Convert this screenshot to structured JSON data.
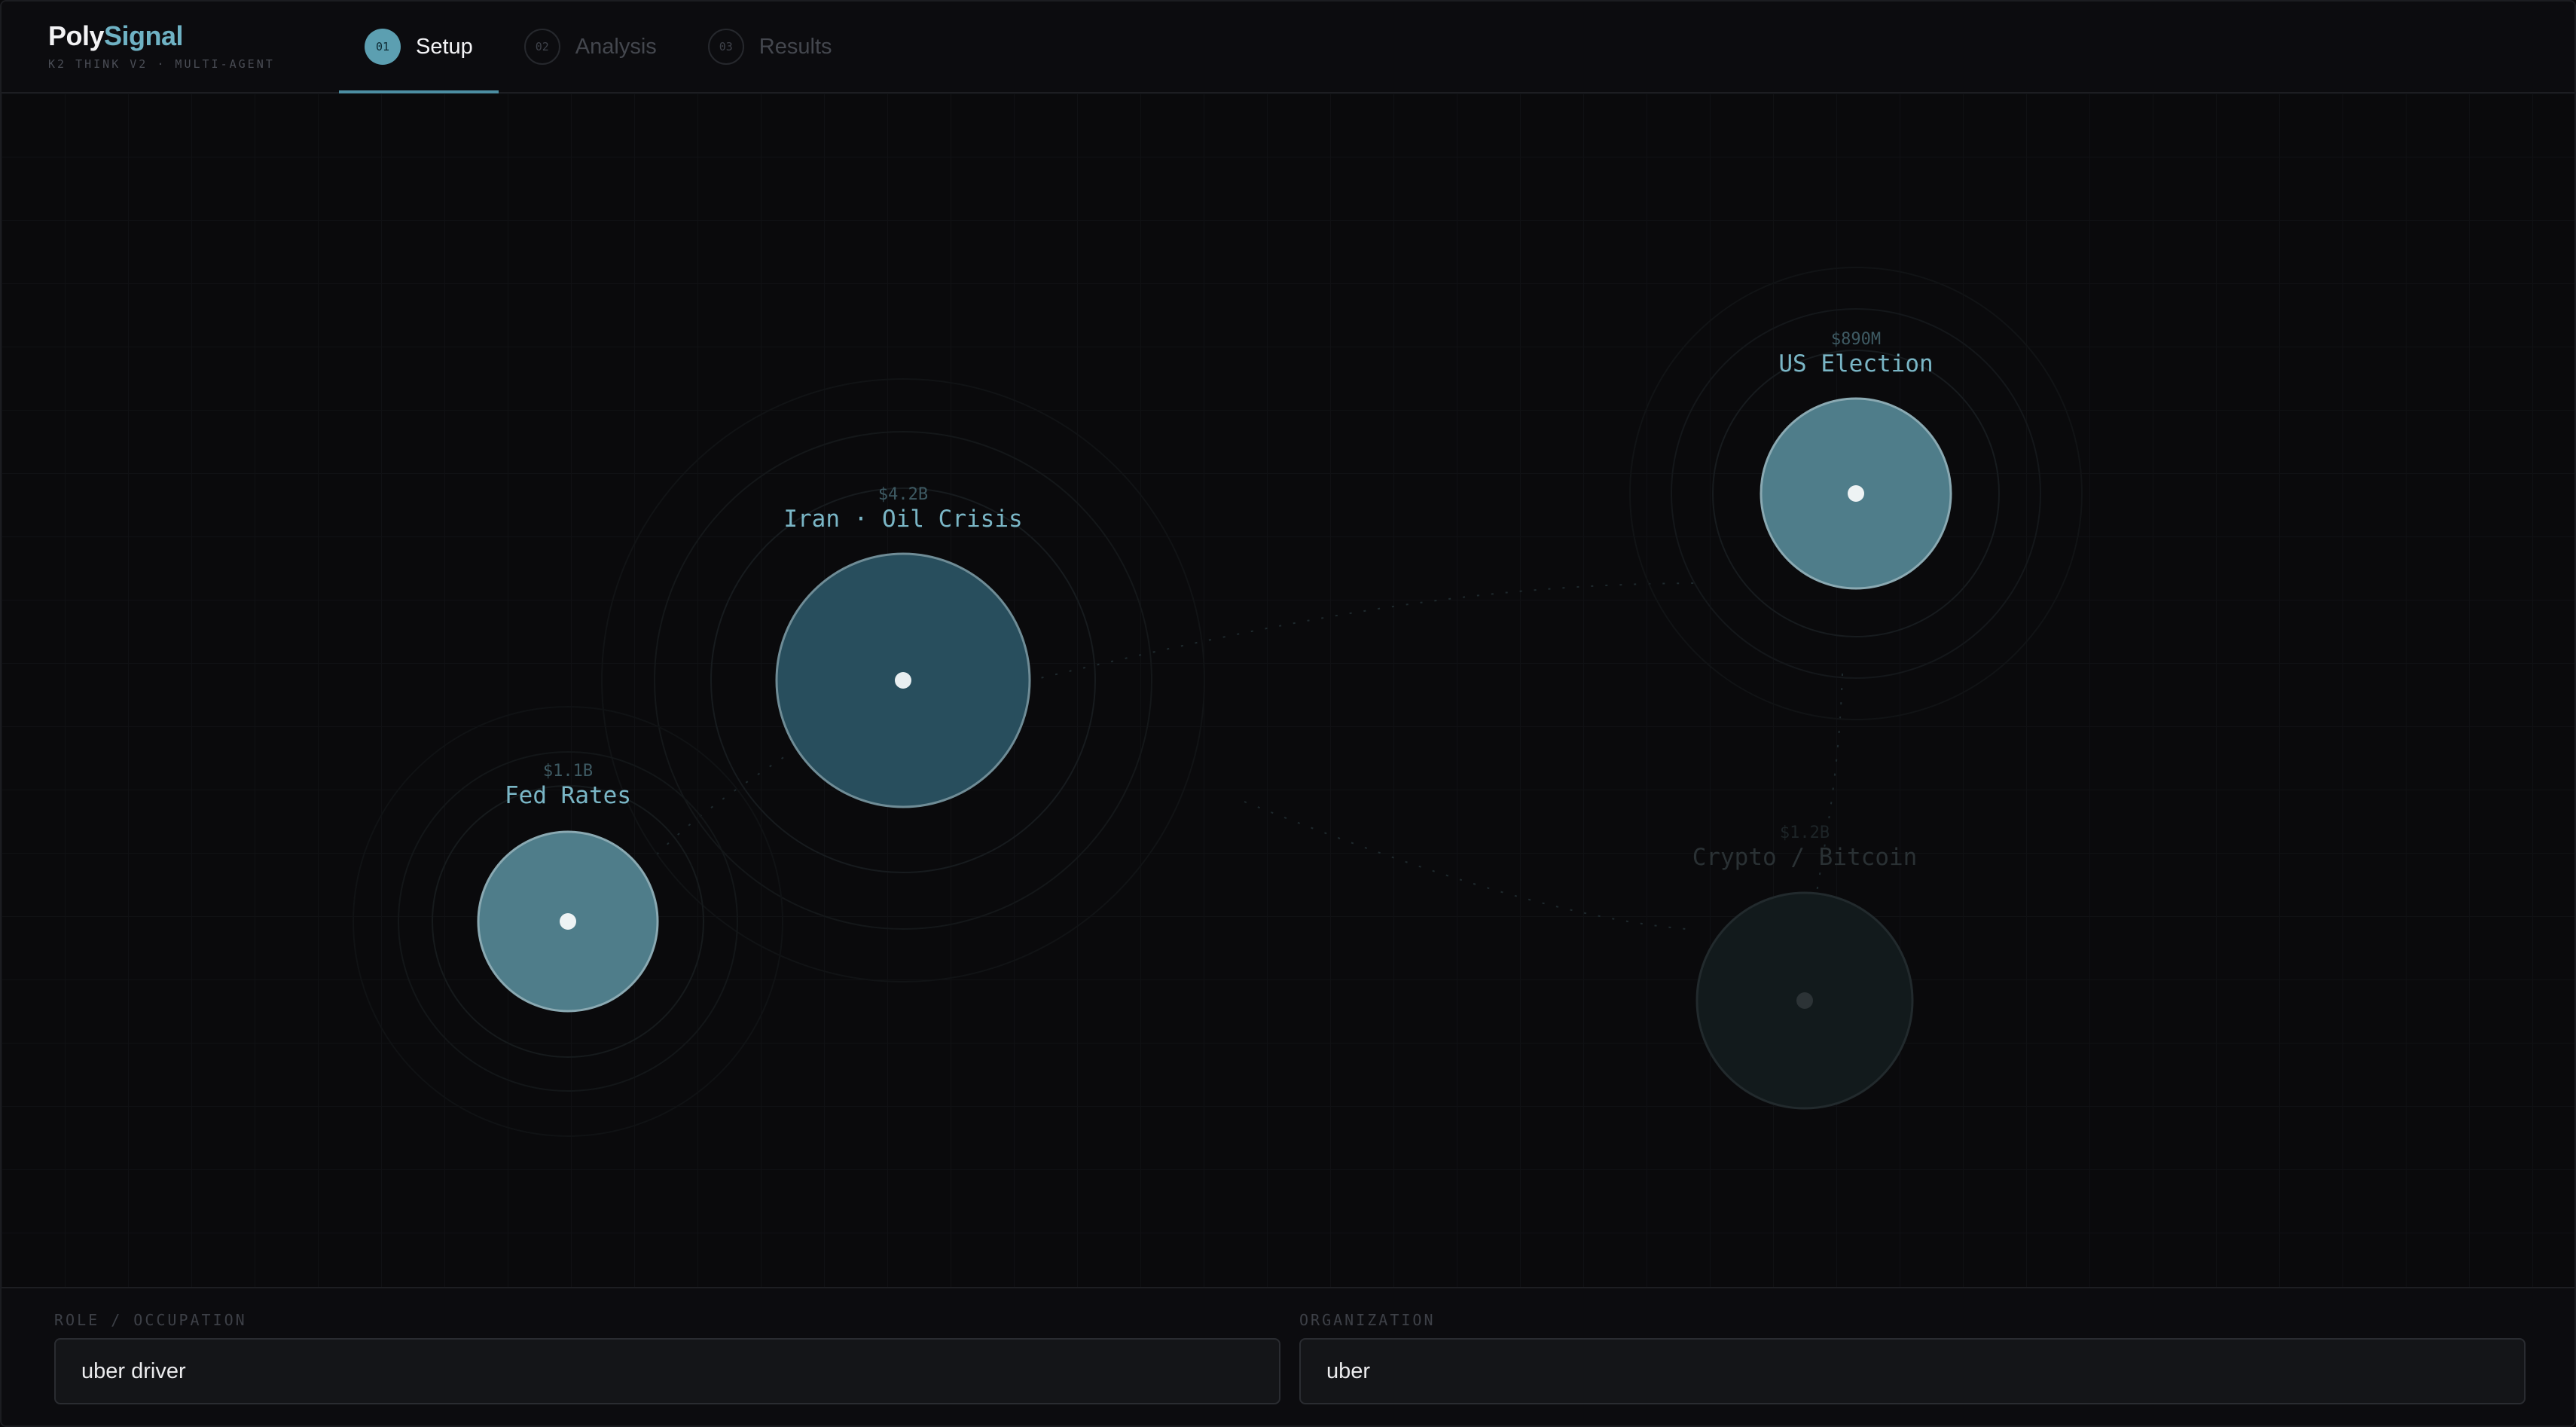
{
  "app": {
    "brand_part1": "Poly",
    "brand_part2": "Signal",
    "subtitle": "K2 THINK V2 · MULTI-AGENT"
  },
  "tabs": [
    {
      "num": "01",
      "label": "Setup",
      "active": true
    },
    {
      "num": "02",
      "label": "Analysis",
      "active": false
    },
    {
      "num": "03",
      "label": "Results",
      "active": false
    }
  ],
  "markets": [
    {
      "volume": "$4.2B",
      "name": "Iran · Oil Crisis",
      "state": "active"
    },
    {
      "volume": "$890M",
      "name": "US Election",
      "state": "active"
    },
    {
      "volume": "$1.1B",
      "name": "Fed Rates",
      "state": "active"
    },
    {
      "volume": "$1.2B",
      "name": "Crypto / Bitcoin",
      "state": "dim"
    }
  ],
  "form": {
    "role_label": "ROLE / OCCUPATION",
    "role_value": "uber driver",
    "org_label": "ORGANIZATION",
    "org_value": "uber"
  },
  "colors": {
    "accent": "#5c9fb1",
    "bubble_large": "#284e5d",
    "bubble_small": "#4f7d8a",
    "bubble_dim": "#121a1c",
    "background": "#0a0a0c"
  }
}
